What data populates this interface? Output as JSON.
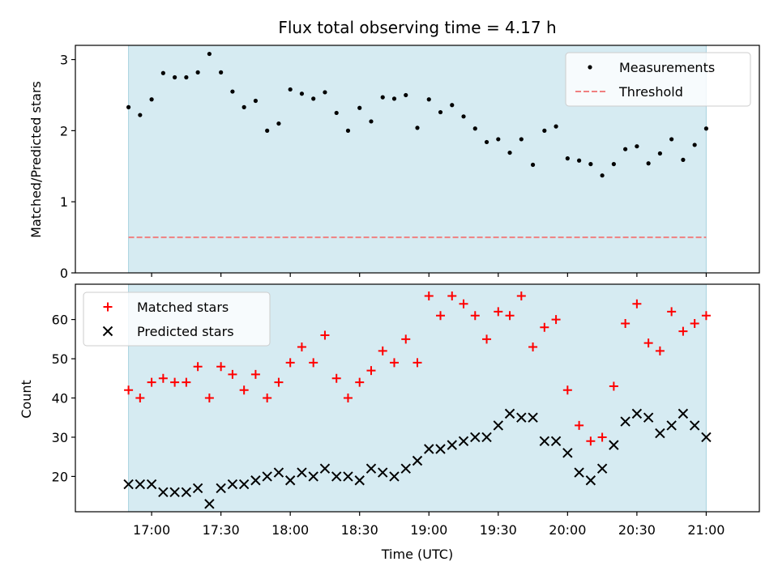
{
  "chart_data": [
    {
      "type": "scatter",
      "title": "Flux total observing time = 4.17 h",
      "ylabel": "Matched/Predicted stars",
      "ylim": [
        0,
        3.2
      ],
      "yticks": [
        0,
        1,
        2,
        3
      ],
      "shaded_range": [
        "16:50",
        "21:00"
      ],
      "grid": false,
      "legend_position": "top-right",
      "threshold": {
        "name": "Threshold",
        "value": 0.5,
        "color": "#f08080",
        "style": "dashed"
      },
      "series": [
        {
          "name": "Measurements",
          "color": "#000000",
          "marker": "dot",
          "x": [
            "16:50",
            "16:55",
            "17:00",
            "17:05",
            "17:10",
            "17:15",
            "17:20",
            "17:25",
            "17:30",
            "17:35",
            "17:40",
            "17:45",
            "17:50",
            "17:55",
            "18:00",
            "18:05",
            "18:10",
            "18:15",
            "18:20",
            "18:25",
            "18:30",
            "18:35",
            "18:40",
            "18:45",
            "18:50",
            "18:55",
            "19:00",
            "19:05",
            "19:10",
            "19:15",
            "19:20",
            "19:25",
            "19:30",
            "19:35",
            "19:40",
            "19:45",
            "19:50",
            "19:55",
            "20:00",
            "20:05",
            "20:10",
            "20:15",
            "20:20",
            "20:25",
            "20:30",
            "20:35",
            "20:40",
            "20:45",
            "20:50",
            "20:55",
            "21:00"
          ],
          "y": [
            2.33,
            2.22,
            2.44,
            2.81,
            2.75,
            2.75,
            2.82,
            3.08,
            2.82,
            2.55,
            2.33,
            2.42,
            2.0,
            2.1,
            2.58,
            2.52,
            2.45,
            2.54,
            2.25,
            2.0,
            2.32,
            2.13,
            2.47,
            2.45,
            2.5,
            2.04,
            2.44,
            2.26,
            2.36,
            2.2,
            2.03,
            1.84,
            1.88,
            1.69,
            1.88,
            1.52,
            2.0,
            2.06,
            1.61,
            1.58,
            1.53,
            1.37,
            1.53,
            1.74,
            1.78,
            1.54,
            1.68,
            1.88,
            1.59,
            1.8,
            2.03
          ]
        }
      ]
    },
    {
      "type": "scatter",
      "xlabel": "Time (UTC)",
      "ylabel": "Count",
      "ylim": [
        11,
        69
      ],
      "yticks": [
        20,
        30,
        40,
        50,
        60
      ],
      "xticks": [
        "17:00",
        "17:30",
        "18:00",
        "18:30",
        "19:00",
        "19:30",
        "20:00",
        "20:30",
        "21:00"
      ],
      "shaded_range": [
        "16:50",
        "21:00"
      ],
      "grid": false,
      "legend_position": "top-left",
      "series": [
        {
          "name": "Matched stars",
          "color": "#ff0000",
          "marker": "plus",
          "x": [
            "16:50",
            "16:55",
            "17:00",
            "17:05",
            "17:10",
            "17:15",
            "17:20",
            "17:25",
            "17:30",
            "17:35",
            "17:40",
            "17:45",
            "17:50",
            "17:55",
            "18:00",
            "18:05",
            "18:10",
            "18:15",
            "18:20",
            "18:25",
            "18:30",
            "18:35",
            "18:40",
            "18:45",
            "18:50",
            "18:55",
            "19:00",
            "19:05",
            "19:10",
            "19:15",
            "19:20",
            "19:25",
            "19:30",
            "19:35",
            "19:40",
            "19:45",
            "19:50",
            "19:55",
            "20:00",
            "20:05",
            "20:10",
            "20:15",
            "20:20",
            "20:25",
            "20:30",
            "20:35",
            "20:40",
            "20:45",
            "20:50",
            "20:55",
            "21:00"
          ],
          "y": [
            42,
            40,
            44,
            45,
            44,
            44,
            48,
            40,
            48,
            46,
            42,
            46,
            40,
            44,
            49,
            53,
            49,
            56,
            45,
            40,
            44,
            47,
            52,
            49,
            55,
            49,
            66,
            61,
            66,
            64,
            61,
            55,
            62,
            61,
            66,
            53,
            58,
            60,
            42,
            33,
            29,
            30,
            43,
            59,
            64,
            54,
            52,
            62,
            57,
            59,
            61
          ]
        },
        {
          "name": "Predicted stars",
          "color": "#000000",
          "marker": "x",
          "x": [
            "16:50",
            "16:55",
            "17:00",
            "17:05",
            "17:10",
            "17:15",
            "17:20",
            "17:25",
            "17:30",
            "17:35",
            "17:40",
            "17:45",
            "17:50",
            "17:55",
            "18:00",
            "18:05",
            "18:10",
            "18:15",
            "18:20",
            "18:25",
            "18:30",
            "18:35",
            "18:40",
            "18:45",
            "18:50",
            "18:55",
            "19:00",
            "19:05",
            "19:10",
            "19:15",
            "19:20",
            "19:25",
            "19:30",
            "19:35",
            "19:40",
            "19:45",
            "19:50",
            "19:55",
            "20:00",
            "20:05",
            "20:10",
            "20:15",
            "20:20",
            "20:25",
            "20:30",
            "20:35",
            "20:40",
            "20:45",
            "20:50",
            "20:55",
            "21:00"
          ],
          "y": [
            18,
            18,
            18,
            16,
            16,
            16,
            17,
            13,
            17,
            18,
            18,
            19,
            20,
            21,
            19,
            21,
            20,
            22,
            20,
            20,
            19,
            22,
            21,
            20,
            22,
            24,
            27,
            27,
            28,
            29,
            30,
            30,
            33,
            36,
            35,
            35,
            29,
            29,
            26,
            21,
            19,
            22,
            28,
            34,
            36,
            35,
            31,
            33,
            36,
            33,
            30
          ]
        }
      ]
    }
  ]
}
